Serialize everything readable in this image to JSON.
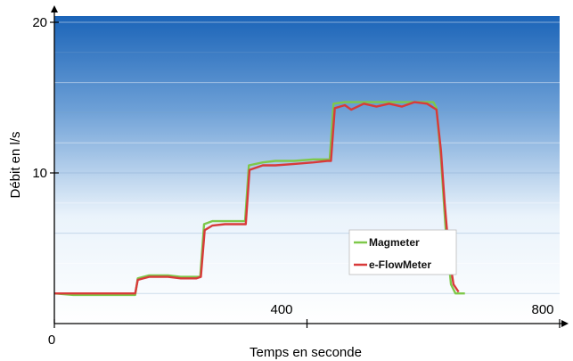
{
  "chart_data": {
    "type": "line",
    "title": "",
    "xlabel": "Temps en seconde",
    "ylabel": "Débit en l/s",
    "xlim": [
      0,
      800
    ],
    "ylim": [
      0,
      20
    ],
    "x_ticks": [
      0,
      400,
      800
    ],
    "y_ticks": [
      10,
      20
    ],
    "x_tick_labels": [
      "0",
      "400",
      "800"
    ],
    "y_tick_labels": [
      "10",
      "20"
    ],
    "grid": true,
    "legend_position": "lower-right",
    "colors": {
      "magmeter": "#7ec84a",
      "eflowmeter": "#d83a3a"
    },
    "series": [
      {
        "name": "Magmeter",
        "points": [
          [
            0,
            2.0
          ],
          [
            30,
            1.9
          ],
          [
            60,
            1.9
          ],
          [
            90,
            1.9
          ],
          [
            120,
            1.9
          ],
          [
            128,
            1.9
          ],
          [
            132,
            3.0
          ],
          [
            150,
            3.2
          ],
          [
            180,
            3.2
          ],
          [
            200,
            3.1
          ],
          [
            225,
            3.1
          ],
          [
            231,
            3.1
          ],
          [
            237,
            6.6
          ],
          [
            250,
            6.8
          ],
          [
            270,
            6.8
          ],
          [
            290,
            6.8
          ],
          [
            302,
            6.8
          ],
          [
            308,
            10.5
          ],
          [
            330,
            10.7
          ],
          [
            350,
            10.8
          ],
          [
            380,
            10.8
          ],
          [
            410,
            10.9
          ],
          [
            430,
            10.9
          ],
          [
            436,
            10.9
          ],
          [
            442,
            14.6
          ],
          [
            460,
            14.7
          ],
          [
            500,
            14.7
          ],
          [
            540,
            14.7
          ],
          [
            580,
            14.7
          ],
          [
            600,
            14.7
          ],
          [
            605,
            14.3
          ],
          [
            612,
            11.0
          ],
          [
            620,
            6.0
          ],
          [
            628,
            2.6
          ],
          [
            635,
            2.0
          ],
          [
            650,
            2.0
          ]
        ]
      },
      {
        "name": "e-FlowMeter",
        "points": [
          [
            0,
            2.0
          ],
          [
            30,
            2.0
          ],
          [
            60,
            2.0
          ],
          [
            90,
            2.0
          ],
          [
            120,
            2.0
          ],
          [
            128,
            2.0
          ],
          [
            132,
            2.9
          ],
          [
            150,
            3.1
          ],
          [
            180,
            3.1
          ],
          [
            200,
            3.0
          ],
          [
            225,
            3.0
          ],
          [
            232,
            3.1
          ],
          [
            238,
            6.2
          ],
          [
            250,
            6.5
          ],
          [
            270,
            6.6
          ],
          [
            290,
            6.6
          ],
          [
            303,
            6.6
          ],
          [
            309,
            10.2
          ],
          [
            330,
            10.5
          ],
          [
            350,
            10.5
          ],
          [
            380,
            10.6
          ],
          [
            410,
            10.7
          ],
          [
            432,
            10.8
          ],
          [
            438,
            10.8
          ],
          [
            444,
            14.3
          ],
          [
            460,
            14.5
          ],
          [
            470,
            14.2
          ],
          [
            490,
            14.6
          ],
          [
            510,
            14.4
          ],
          [
            530,
            14.6
          ],
          [
            550,
            14.4
          ],
          [
            570,
            14.7
          ],
          [
            590,
            14.6
          ],
          [
            605,
            14.2
          ],
          [
            612,
            11.5
          ],
          [
            618,
            8.0
          ],
          [
            625,
            4.5
          ],
          [
            632,
            2.6
          ],
          [
            640,
            2.1
          ]
        ]
      }
    ]
  }
}
